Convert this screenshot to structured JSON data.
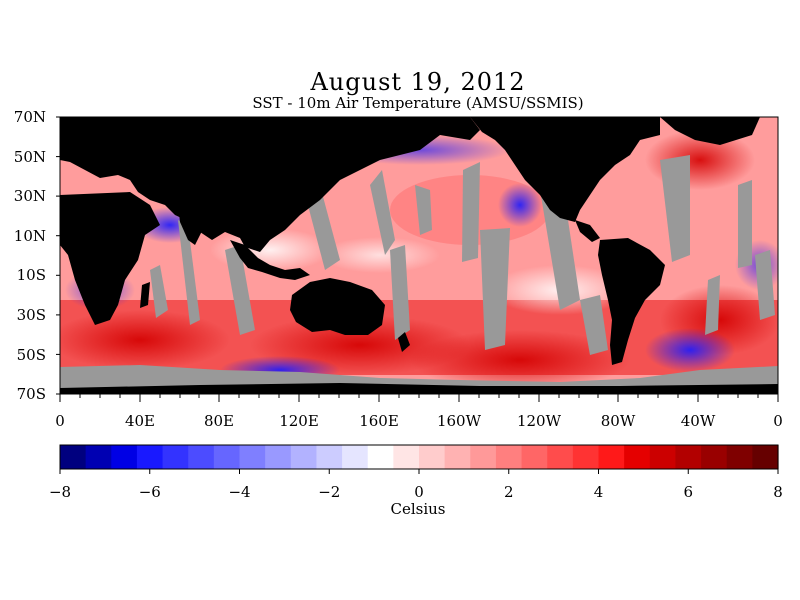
{
  "title": "August 19, 2012",
  "subtitle": "SST - 10m Air Temperature (AMSU/SSMIS)",
  "map": {
    "lat_labels": [
      "70N",
      "50N",
      "30N",
      "10N",
      "10S",
      "30S",
      "50S",
      "70S"
    ],
    "lon_labels": [
      "0",
      "40E",
      "80E",
      "120E",
      "160E",
      "160W",
      "120W",
      "80W",
      "40W",
      "0"
    ],
    "colors": {
      "land": "#000000",
      "no_data": "#999999",
      "ice": "#999999"
    }
  },
  "colorbar": {
    "min": -8,
    "max": 8,
    "tick_labels": [
      "−8",
      "−6",
      "−4",
      "−2",
      "0",
      "2",
      "4",
      "6",
      "8"
    ],
    "unit_label": "Celsius",
    "colors": [
      "#00007f",
      "#0000b2",
      "#0000e5",
      "#1919ff",
      "#3333ff",
      "#4c4cff",
      "#6666ff",
      "#7f7fff",
      "#9999ff",
      "#b2b2ff",
      "#ccccff",
      "#e5e5ff",
      "#ffffff",
      "#ffe5e5",
      "#ffcccc",
      "#ffb2b2",
      "#ff9999",
      "#ff7f7f",
      "#ff6666",
      "#ff4c4c",
      "#ff3333",
      "#ff1919",
      "#e50000",
      "#cc0000",
      "#b20000",
      "#990000",
      "#7f0000",
      "#660000"
    ]
  }
}
